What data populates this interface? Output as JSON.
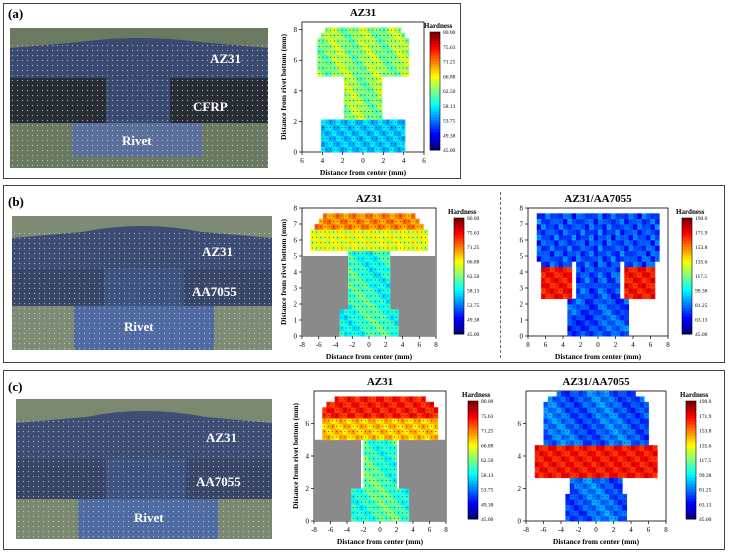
{
  "panels": [
    {
      "label": "(a)",
      "photo": {
        "top_plate": "AZ31",
        "bottom_plate": "CFRP",
        "rivet": "Rivet"
      }
    },
    {
      "label": "(b)",
      "photo": {
        "top_plate": "AZ31",
        "bottom_plate": "AA7055",
        "rivet": "Rivet"
      }
    },
    {
      "label": "(c)",
      "photo": {
        "top_plate": "AZ31",
        "bottom_plate": "AA7055",
        "rivet": "Rivet"
      }
    }
  ],
  "chart_data": [
    {
      "id": "a1",
      "type": "heatmap",
      "title": "AZ31",
      "xlabel": "Distance from center (mm)",
      "ylabel": "Distance from rivet bottom (mm)",
      "xticks": [
        "6",
        "4",
        "2",
        "0",
        "2",
        "4",
        "6"
      ],
      "yticks": [
        "0",
        "2",
        "4",
        "6",
        "8"
      ],
      "xlim": [
        -6,
        6
      ],
      "ylim": [
        0,
        8.5
      ],
      "colorbar": {
        "title": "Hardness",
        "ticks": [
          "80.00",
          "75.63",
          "71.25",
          "66.88",
          "62.50",
          "58.13",
          "53.75",
          "49.38",
          "45.00"
        ]
      }
    },
    {
      "id": "b1",
      "type": "heatmap",
      "title": "AZ31",
      "xlabel": "Distance from center (mm)",
      "ylabel": "Distance from rivet bottom (mm)",
      "xticks": [
        "-8",
        "-6",
        "-4",
        "-2",
        "0",
        "2",
        "4",
        "6",
        "8"
      ],
      "yticks": [
        "0",
        "1",
        "2",
        "3",
        "4",
        "5",
        "6",
        "7",
        "8"
      ],
      "xlim": [
        -8,
        8
      ],
      "ylim": [
        0,
        8
      ],
      "colorbar": {
        "title": "Hardness",
        "ticks": [
          "80.00",
          "75.63",
          "71.25",
          "66.88",
          "62.50",
          "58.13",
          "53.75",
          "49.38",
          "45.00"
        ]
      }
    },
    {
      "id": "b2",
      "type": "heatmap",
      "title": "AZ31/AA7055",
      "xlabel": "Distance from center (mm)",
      "ylabel": "",
      "xticks": [
        "8",
        "6",
        "4",
        "2",
        "0",
        "2",
        "4",
        "6",
        "8"
      ],
      "yticks": [
        "0",
        "1",
        "2",
        "3",
        "4",
        "5",
        "6",
        "7",
        "8"
      ],
      "xlim": [
        -8,
        8
      ],
      "ylim": [
        0,
        8
      ],
      "colorbar": {
        "title": "Hardness",
        "ticks": [
          "190.0",
          "171.9",
          "153.8",
          "135.6",
          "117.5",
          "99.38",
          "81.25",
          "63.13",
          "45.00"
        ]
      }
    },
    {
      "id": "c1",
      "type": "heatmap",
      "title": "AZ31",
      "xlabel": "Distance from center (mm)",
      "ylabel": "Distance from rivet bottom (mm)",
      "xticks": [
        "-8",
        "-6",
        "-4",
        "-2",
        "0",
        "2",
        "4",
        "6",
        "8"
      ],
      "yticks": [
        "0",
        "2",
        "4",
        "6"
      ],
      "xlim": [
        -8,
        8
      ],
      "ylim": [
        0,
        8
      ],
      "colorbar": {
        "title": "Hardness",
        "ticks": [
          "80.00",
          "75.63",
          "71.25",
          "66.88",
          "62.50",
          "58.13",
          "53.75",
          "49.38",
          "45.00"
        ]
      }
    },
    {
      "id": "c2",
      "type": "heatmap",
      "title": "AZ31/AA7055",
      "xlabel": "Distance from center (mm)",
      "ylabel": "",
      "xticks": [
        "-8",
        "-6",
        "-4",
        "-2",
        "0",
        "2",
        "4",
        "6",
        "8"
      ],
      "yticks": [
        "0",
        "2",
        "4",
        "6"
      ],
      "xlim": [
        -8,
        8
      ],
      "ylim": [
        0,
        8
      ],
      "colorbar": {
        "title": "Hardness",
        "ticks": [
          "190.0",
          "171.9",
          "153.8",
          "135.6",
          "117.5",
          "99.38",
          "81.25",
          "63.13",
          "45.00"
        ]
      }
    }
  ]
}
